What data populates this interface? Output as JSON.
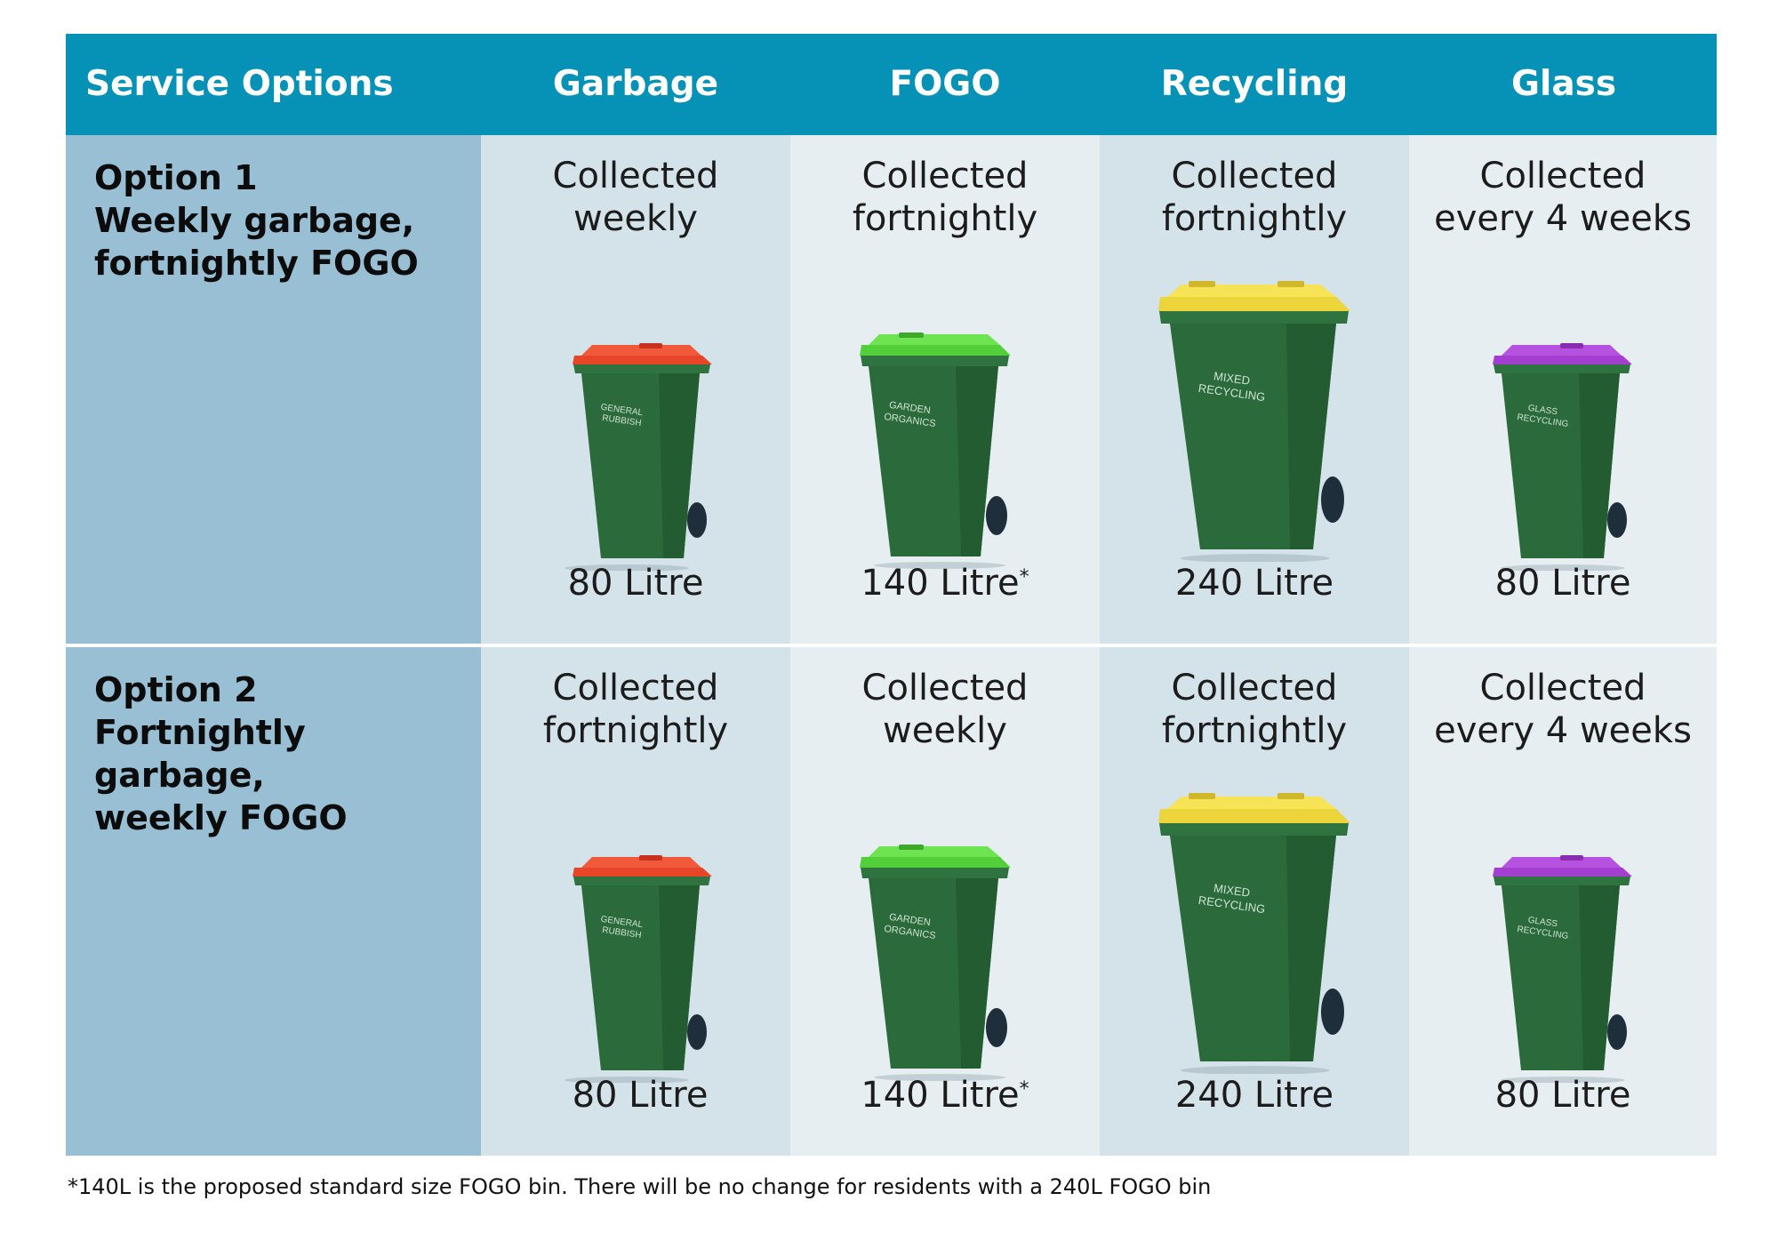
{
  "header": {
    "service_options": "Service Options",
    "garbage": "Garbage",
    "fogo": "FOGO",
    "recycling": "Recycling",
    "glass": "Glass"
  },
  "rows": [
    {
      "title_line1": "Option 1",
      "title_line2": "Weekly garbage,",
      "title_line3": "fortnightly FOGO",
      "garbage": {
        "freq1": "Collected",
        "freq2": "weekly",
        "size": "80 Litre"
      },
      "fogo": {
        "freq1": "Collected",
        "freq2": "fortnightly",
        "size": "140 Litre",
        "mark": "*"
      },
      "recycling": {
        "freq1": "Collected",
        "freq2": "fortnightly",
        "size": "240 Litre"
      },
      "glass": {
        "freq1": "Collected",
        "freq2": "every 4 weeks",
        "size": "80 Litre"
      }
    },
    {
      "title_line1": "Option 2",
      "title_line2": "Fortnightly garbage,",
      "title_line3": "weekly FOGO",
      "garbage": {
        "freq1": "Collected",
        "freq2": "fortnightly",
        "size": "80 Litre"
      },
      "fogo": {
        "freq1": "Collected",
        "freq2": "weekly",
        "size": "140 Litre",
        "mark": "*"
      },
      "recycling": {
        "freq1": "Collected",
        "freq2": "fortnightly",
        "size": "240 Litre"
      },
      "glass": {
        "freq1": "Collected",
        "freq2": "every 4 weeks",
        "size": "80 Litre"
      }
    }
  ],
  "bins": {
    "garbage": {
      "line1": "GENERAL",
      "line2": "RUBBISH",
      "lid_color": "#e8442a",
      "body_color": "#2b6a3a"
    },
    "fogo": {
      "line1": "GARDEN",
      "line2": "ORGANICS",
      "lid_color": "#53cf3a",
      "body_color": "#2b6a3a"
    },
    "recycling": {
      "line1": "MIXED",
      "line2": "RECYCLING",
      "lid_color": "#ecd53a",
      "body_color": "#2b6a3a"
    },
    "glass": {
      "line1": "GLASS",
      "line2": "RECYCLING",
      "lid_color": "#a33ed0",
      "body_color": "#2b6a3a"
    }
  },
  "footnote": "*140L is the proposed standard size FOGO bin. There will be no change for residents with a 240L FOGO bin"
}
